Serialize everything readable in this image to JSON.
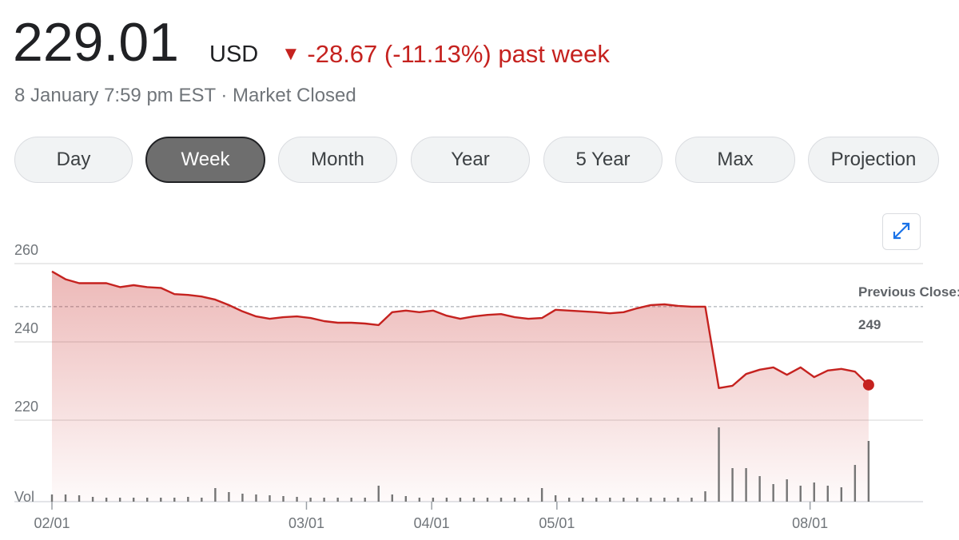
{
  "header": {
    "price": "229.01",
    "currency": "USD",
    "change": "-28.67 (-11.13%) past week",
    "timestamp": "8 January 7:59 pm EST · Market Closed"
  },
  "tabs": {
    "items": [
      "Day",
      "Week",
      "Month",
      "Year",
      "5 Year",
      "Max",
      "Projection"
    ],
    "selected": 1
  },
  "chart_data": {
    "type": "line",
    "color": "#c5221f",
    "x": [
      0,
      1,
      2,
      3,
      4,
      5,
      6,
      7,
      8,
      9,
      10,
      11,
      12,
      13,
      14,
      15,
      16,
      17,
      18,
      19,
      20,
      21,
      22,
      23,
      24,
      25,
      26,
      27,
      28,
      29,
      30,
      31,
      32,
      33,
      34,
      35,
      36,
      37,
      38,
      39,
      40,
      41,
      42,
      43,
      44,
      45,
      46,
      47,
      48,
      49,
      50,
      51,
      52,
      53,
      54,
      55,
      56,
      57,
      58,
      59,
      60
    ],
    "values": [
      258,
      256,
      255,
      255,
      255,
      254,
      254.5,
      254,
      253.8,
      252.2,
      252,
      251.6,
      250.8,
      249.4,
      247.8,
      246.5,
      245.9,
      246.3,
      246.5,
      246.1,
      245.3,
      244.9,
      244.9,
      244.7,
      244.3,
      247.6,
      248,
      247.6,
      248,
      246.7,
      245.9,
      246.5,
      246.9,
      247.1,
      246.3,
      245.9,
      246.1,
      248.2,
      248,
      247.8,
      247.6,
      247.3,
      247.6,
      248.6,
      249.4,
      249.6,
      249.2,
      249,
      249,
      228.2,
      228.8,
      231.8,
      232.9,
      233.5,
      231.6,
      233.5,
      231,
      232.7,
      233.1,
      232.4,
      229.01
    ],
    "volume_label": "Vol",
    "volume": [
      9,
      9,
      8,
      6,
      5,
      5,
      5,
      5,
      5,
      5,
      6,
      5,
      17,
      12,
      10,
      9,
      8,
      7,
      6,
      5,
      5,
      5,
      5,
      5,
      20,
      9,
      7,
      5,
      5,
      5,
      5,
      5,
      5,
      5,
      5,
      5,
      17,
      8,
      5,
      5,
      5,
      5,
      5,
      5,
      5,
      5,
      5,
      5,
      13,
      93,
      42,
      42,
      32,
      22,
      28,
      20,
      24,
      20,
      18,
      46,
      76
    ],
    "xlim": [
      0,
      64
    ],
    "ylim": [
      199,
      266
    ],
    "yticks": [
      220,
      240,
      260
    ],
    "xticks": [
      {
        "value": 0,
        "label": "02/01"
      },
      {
        "value": 18.7,
        "label": "03/01"
      },
      {
        "value": 27.9,
        "label": "04/01"
      },
      {
        "value": 37.1,
        "label": "05/01"
      },
      {
        "value": 55.7,
        "label": "08/01"
      }
    ],
    "previous_close": {
      "label": "Previous Close:",
      "value": 249
    },
    "grid": true
  }
}
